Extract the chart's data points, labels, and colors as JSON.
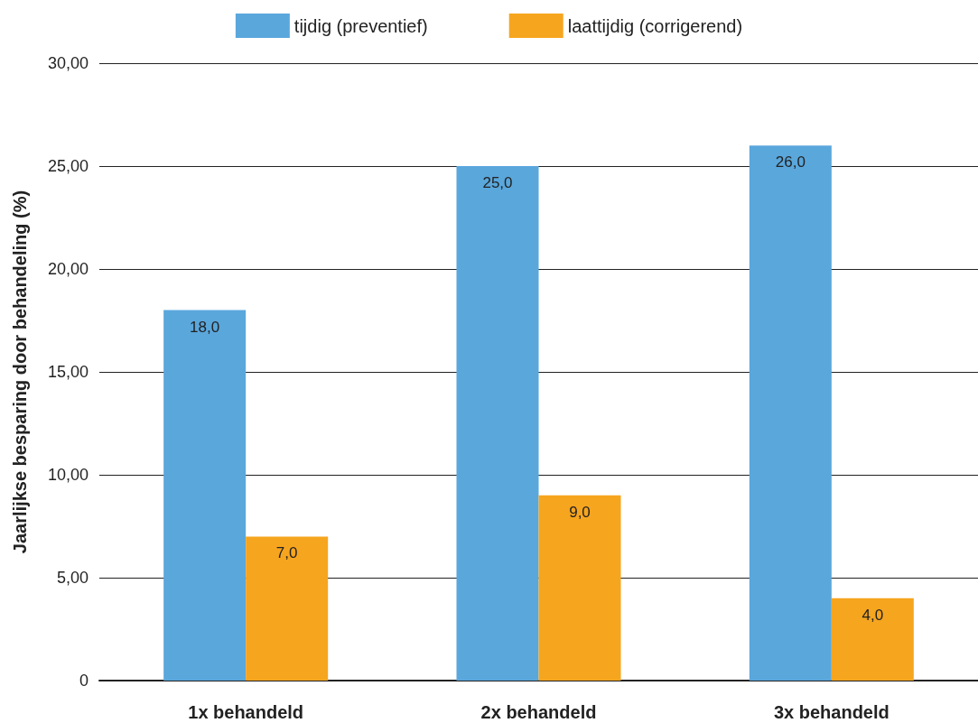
{
  "chart_data": {
    "type": "bar",
    "ylabel": "Jaarlijkse besparing door behandeling (%)",
    "categories": [
      "1x behandeld",
      "2x behandeld",
      "3x behandeld"
    ],
    "series": [
      {
        "name": "tijdig (preventief)",
        "color": "#5aa7dc",
        "values": [
          18,
          25,
          26
        ],
        "value_labels": [
          "18,0",
          "25,0",
          "26,0"
        ]
      },
      {
        "name": "laattijdig (corrigerend)",
        "color": "#f6a51f",
        "values": [
          7,
          9,
          4
        ],
        "value_labels": [
          "7,0",
          "9,0",
          "4,0"
        ]
      }
    ],
    "ylim": [
      0,
      30
    ],
    "yticks": [
      {
        "value": 0,
        "label": "0"
      },
      {
        "value": 5,
        "label": "5,00"
      },
      {
        "value": 10,
        "label": "10,00"
      },
      {
        "value": 15,
        "label": "15,00"
      },
      {
        "value": 20,
        "label": "20,00"
      },
      {
        "value": 25,
        "label": "25,00"
      },
      {
        "value": 30,
        "label": "30,00"
      }
    ],
    "grid": "y",
    "legend": "top"
  }
}
